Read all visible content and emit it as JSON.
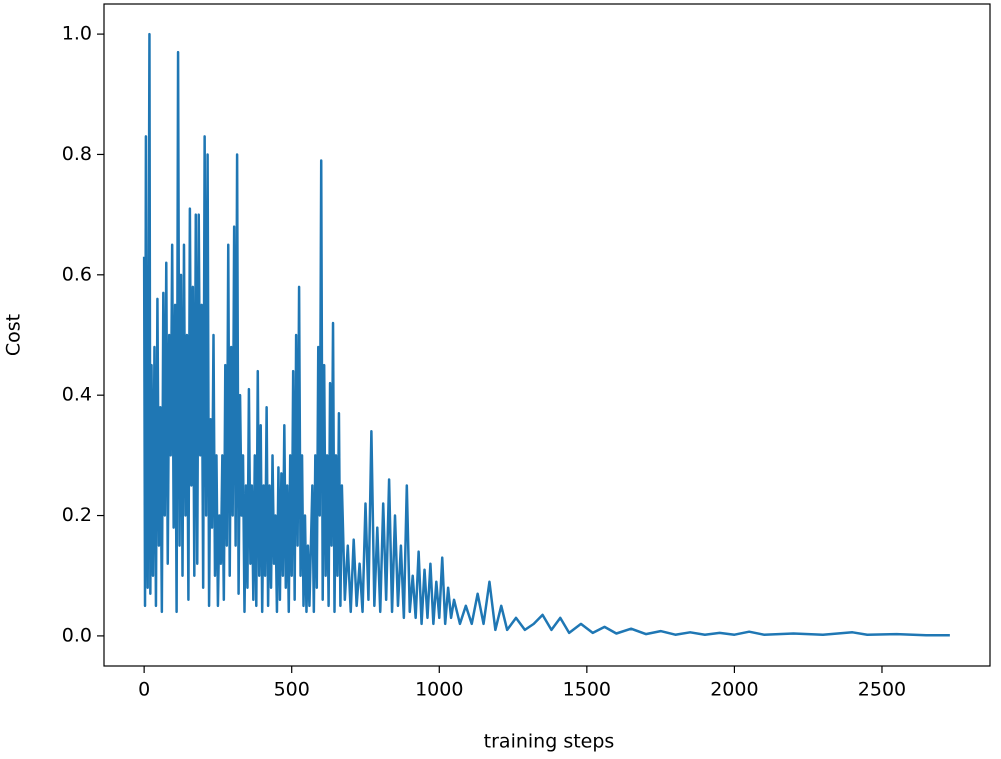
{
  "chart_data": {
    "type": "line",
    "x_label": "training steps",
    "y_label": "Cost",
    "xlim": [
      -136,
      2866
    ],
    "ylim": [
      -0.05,
      1.05
    ],
    "xticks": [
      0,
      500,
      1000,
      1500,
      2000,
      2500
    ],
    "yticks": [
      {
        "value": 0,
        "label": "0.0"
      },
      {
        "value": 0.2,
        "label": "0.2"
      },
      {
        "value": 0.4,
        "label": "0.4"
      },
      {
        "value": 0.6,
        "label": "0.6"
      },
      {
        "value": 0.8,
        "label": "0.8"
      },
      {
        "value": 1,
        "label": "1.0"
      }
    ],
    "x": [
      0,
      3,
      6,
      9,
      12,
      15,
      18,
      21,
      25,
      30,
      35,
      40,
      45,
      50,
      55,
      60,
      65,
      70,
      75,
      80,
      85,
      90,
      95,
      100,
      105,
      110,
      115,
      120,
      125,
      130,
      135,
      140,
      145,
      150,
      155,
      160,
      165,
      170,
      175,
      180,
      185,
      190,
      195,
      200,
      205,
      210,
      215,
      220,
      225,
      230,
      235,
      240,
      245,
      250,
      255,
      260,
      265,
      270,
      275,
      280,
      285,
      290,
      295,
      300,
      305,
      310,
      315,
      320,
      325,
      330,
      335,
      340,
      345,
      350,
      355,
      360,
      365,
      370,
      375,
      380,
      385,
      390,
      395,
      400,
      405,
      410,
      415,
      420,
      425,
      430,
      435,
      440,
      445,
      450,
      455,
      460,
      465,
      470,
      475,
      480,
      485,
      490,
      495,
      500,
      505,
      510,
      515,
      520,
      525,
      530,
      535,
      540,
      545,
      550,
      555,
      560,
      570,
      575,
      580,
      585,
      590,
      595,
      600,
      605,
      610,
      615,
      620,
      625,
      630,
      635,
      640,
      645,
      650,
      655,
      660,
      665,
      670,
      680,
      690,
      700,
      710,
      720,
      730,
      740,
      750,
      760,
      770,
      780,
      790,
      800,
      810,
      820,
      830,
      840,
      850,
      860,
      870,
      880,
      890,
      900,
      910,
      920,
      930,
      940,
      950,
      960,
      970,
      980,
      990,
      1000,
      1010,
      1020,
      1030,
      1040,
      1050,
      1070,
      1090,
      1110,
      1130,
      1150,
      1170,
      1190,
      1210,
      1230,
      1260,
      1290,
      1320,
      1350,
      1380,
      1410,
      1440,
      1480,
      1520,
      1560,
      1600,
      1650,
      1700,
      1750,
      1800,
      1850,
      1900,
      1950,
      2000,
      2050,
      2100,
      2200,
      2300,
      2400,
      2450,
      2550,
      2650,
      2730
    ],
    "series": [
      {
        "name": "cost",
        "color": "#1f77b4",
        "values": [
          0.63,
          0.05,
          0.83,
          0.25,
          0.08,
          0.52,
          1.0,
          0.07,
          0.45,
          0.1,
          0.48,
          0.05,
          0.56,
          0.15,
          0.38,
          0.04,
          0.57,
          0.2,
          0.62,
          0.12,
          0.5,
          0.3,
          0.65,
          0.18,
          0.55,
          0.04,
          0.97,
          0.15,
          0.6,
          0.1,
          0.65,
          0.2,
          0.5,
          0.06,
          0.71,
          0.25,
          0.58,
          0.1,
          0.7,
          0.12,
          0.7,
          0.3,
          0.55,
          0.08,
          0.83,
          0.2,
          0.8,
          0.05,
          0.36,
          0.18,
          0.5,
          0.1,
          0.3,
          0.05,
          0.2,
          0.12,
          0.3,
          0.06,
          0.45,
          0.15,
          0.65,
          0.1,
          0.48,
          0.2,
          0.68,
          0.15,
          0.8,
          0.07,
          0.4,
          0.2,
          0.3,
          0.04,
          0.25,
          0.08,
          0.41,
          0.12,
          0.25,
          0.06,
          0.3,
          0.05,
          0.44,
          0.1,
          0.35,
          0.04,
          0.25,
          0.1,
          0.38,
          0.05,
          0.25,
          0.08,
          0.3,
          0.12,
          0.2,
          0.04,
          0.28,
          0.06,
          0.27,
          0.1,
          0.35,
          0.08,
          0.25,
          0.04,
          0.3,
          0.1,
          0.44,
          0.06,
          0.5,
          0.15,
          0.58,
          0.1,
          0.3,
          0.05,
          0.2,
          0.04,
          0.15,
          0.05,
          0.25,
          0.04,
          0.3,
          0.08,
          0.48,
          0.2,
          0.79,
          0.06,
          0.45,
          0.1,
          0.3,
          0.05,
          0.42,
          0.15,
          0.52,
          0.04,
          0.3,
          0.1,
          0.37,
          0.05,
          0.25,
          0.06,
          0.15,
          0.04,
          0.16,
          0.05,
          0.12,
          0.04,
          0.22,
          0.06,
          0.34,
          0.05,
          0.18,
          0.04,
          0.22,
          0.06,
          0.26,
          0.04,
          0.2,
          0.05,
          0.15,
          0.03,
          0.25,
          0.04,
          0.1,
          0.03,
          0.14,
          0.02,
          0.11,
          0.03,
          0.12,
          0.02,
          0.09,
          0.03,
          0.13,
          0.02,
          0.08,
          0.03,
          0.06,
          0.02,
          0.05,
          0.02,
          0.07,
          0.02,
          0.09,
          0.01,
          0.05,
          0.01,
          0.03,
          0.01,
          0.02,
          0.035,
          0.01,
          0.03,
          0.005,
          0.02,
          0.005,
          0.015,
          0.004,
          0.012,
          0.003,
          0.008,
          0.002,
          0.006,
          0.002,
          0.005,
          0.002,
          0.007,
          0.002,
          0.004,
          0.002,
          0.006,
          0.002,
          0.003,
          0.001,
          0.001
        ]
      }
    ]
  }
}
